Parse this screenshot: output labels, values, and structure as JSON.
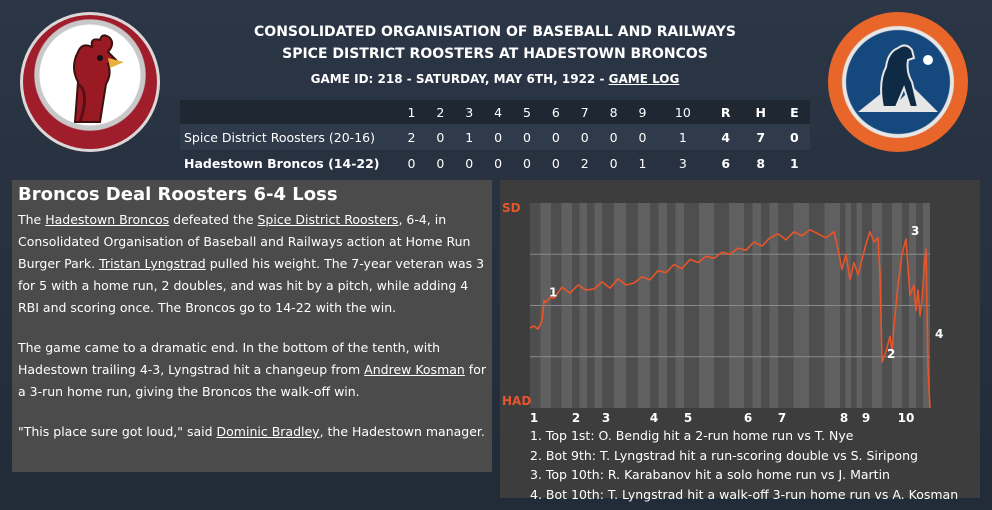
{
  "header": {
    "line1": "CONSOLIDATED ORGANISATION OF BASEBALL AND RAILWAYS",
    "line2": "SPICE DISTRICT ROOSTERS AT HADESTOWN BRONCOS",
    "line3_prefix": "GAME ID: 218 - SATURDAY, MAY 6TH, 1922 - ",
    "game_log_link": "GAME LOG"
  },
  "logos": {
    "left": "rooster-logo",
    "right": "bronco-logo"
  },
  "boxscore": {
    "innings": [
      "1",
      "2",
      "3",
      "4",
      "5",
      "6",
      "7",
      "8",
      "9",
      "10"
    ],
    "totals_headers": [
      "R",
      "H",
      "E"
    ],
    "away": {
      "team": "Spice District Roosters (20-16)",
      "innings": [
        "2",
        "0",
        "1",
        "0",
        "0",
        "0",
        "0",
        "0",
        "0",
        "1"
      ],
      "totals": [
        "4",
        "7",
        "0"
      ]
    },
    "home": {
      "team": "Hadestown Broncos (14-22)",
      "innings": [
        "0",
        "0",
        "0",
        "0",
        "0",
        "0",
        "2",
        "0",
        "1",
        "3"
      ],
      "totals": [
        "6",
        "8",
        "1"
      ]
    }
  },
  "story": {
    "headline": "Broncos Deal Roosters 6-4 Loss",
    "p1_a": "The ",
    "p1_home": "Hadestown Broncos",
    "p1_b": " defeated the ",
    "p1_away": "Spice District Roosters",
    "p1_c": ", 6-4, in Consolidated Organisation of Baseball and Railways action at Home Run Burger Park. ",
    "p1_player": "Tristan Lyngstrad",
    "p1_d": " pulled his weight. The 7-year veteran was 3 for 5 with a home run, 2 doubles, and was hit by a pitch, while adding 4 RBI and scoring once. The Broncos go to 14-22 with the win.",
    "p2_a": "The game came to a dramatic end. In the bottom of the tenth, with Hadestown trailing 4-3, Lyngstrad hit a changeup from ",
    "p2_pitcher": "Andrew Kosman",
    "p2_b": " for a 3-run home run, giving the Broncos the walk-off win.",
    "p3_a": "\"This place sure got loud,\" said ",
    "p3_manager": "Dominic Bradley",
    "p3_b": ", the Hadestown manager."
  },
  "chart_data": {
    "type": "line",
    "y_top_label": "SD",
    "y_bottom_label": "HAD",
    "ylim": [
      -1,
      1
    ],
    "inning_labels": [
      "1",
      "2",
      "3",
      "4",
      "5",
      "6",
      "7",
      "8",
      "9",
      "10"
    ],
    "inning_positions": [
      0,
      0.105,
      0.18,
      0.3,
      0.385,
      0.535,
      0.62,
      0.775,
      0.83,
      0.93
    ],
    "line_color": "#e8552a",
    "x": [
      0,
      0.01,
      0.02,
      0.03,
      0.035,
      0.04,
      0.05,
      0.06,
      0.08,
      0.1,
      0.12,
      0.14,
      0.16,
      0.18,
      0.2,
      0.22,
      0.24,
      0.26,
      0.28,
      0.3,
      0.32,
      0.34,
      0.36,
      0.38,
      0.4,
      0.42,
      0.44,
      0.46,
      0.48,
      0.5,
      0.52,
      0.54,
      0.56,
      0.58,
      0.6,
      0.62,
      0.64,
      0.66,
      0.68,
      0.7,
      0.72,
      0.74,
      0.76,
      0.77,
      0.78,
      0.79,
      0.8,
      0.81,
      0.82,
      0.83,
      0.84,
      0.85,
      0.86,
      0.87,
      0.875,
      0.88,
      0.89,
      0.9,
      0.905,
      0.91,
      0.92,
      0.93,
      0.94,
      0.95,
      0.96,
      0.965,
      0.97,
      0.975,
      0.98,
      0.985,
      0.99,
      0.995,
      1.0
    ],
    "y": [
      -0.22,
      -0.2,
      -0.23,
      -0.15,
      0.05,
      0.03,
      0.08,
      0.07,
      0.18,
      0.12,
      0.2,
      0.15,
      0.16,
      0.23,
      0.17,
      0.26,
      0.2,
      0.22,
      0.28,
      0.25,
      0.34,
      0.32,
      0.4,
      0.36,
      0.45,
      0.42,
      0.48,
      0.46,
      0.52,
      0.5,
      0.56,
      0.54,
      0.62,
      0.58,
      0.66,
      0.7,
      0.64,
      0.72,
      0.68,
      0.74,
      0.7,
      0.66,
      0.72,
      0.55,
      0.35,
      0.5,
      0.25,
      0.42,
      0.3,
      0.45,
      0.6,
      0.72,
      0.62,
      0.66,
      0.3,
      -0.55,
      -0.45,
      -0.3,
      -0.45,
      -0.2,
      0.2,
      0.5,
      0.65,
      0.1,
      0.2,
      -0.05,
      0.15,
      -0.1,
      0.05,
      0.35,
      0.55,
      -0.6,
      -1.0
    ],
    "annotation_marks": [
      {
        "label": "1",
        "x": 0.035,
        "y": 0.05
      },
      {
        "label": "2",
        "x": 0.88,
        "y": -0.55
      },
      {
        "label": "3",
        "x": 0.94,
        "y": 0.65
      },
      {
        "label": "4",
        "x": 1.0,
        "y": -1.0
      }
    ],
    "annotations": [
      "1. Top 1st: O. Bendig hit a 2-run home run vs T. Nye",
      "2. Bot 9th: T. Lyngstrad hit a run-scoring double vs S. Siripong",
      "3. Top 10th: R. Karabanov hit a solo home run vs J. Martin",
      "4. Bot 10th: T. Lyngstrad hit a walk-off 3-run home run vs A. Kosman"
    ]
  }
}
